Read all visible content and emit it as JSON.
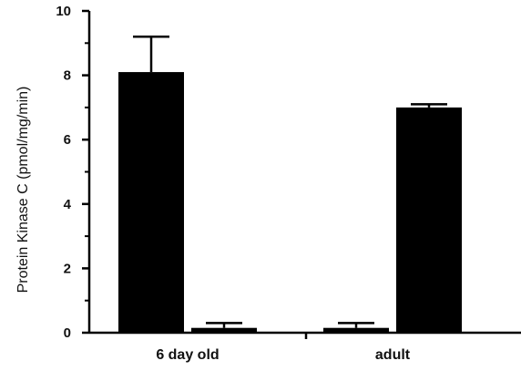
{
  "chart_data": {
    "type": "bar",
    "title": "",
    "xlabel": "",
    "ylabel": "Protein Kinase C (pmol/mg/min)",
    "categories": [
      "6 day old",
      "adult"
    ],
    "series": [
      {
        "values": [
          8.1,
          0.15
        ],
        "errors": [
          1.1,
          0.15
        ]
      },
      {
        "values": [
          0.15,
          7.0
        ],
        "errors": [
          0.15,
          0.1
        ]
      }
    ],
    "ylim": [
      0,
      10
    ],
    "yticks": [
      0,
      2,
      4,
      6,
      8,
      10
    ],
    "grid": false,
    "bar_color": "#000000"
  }
}
